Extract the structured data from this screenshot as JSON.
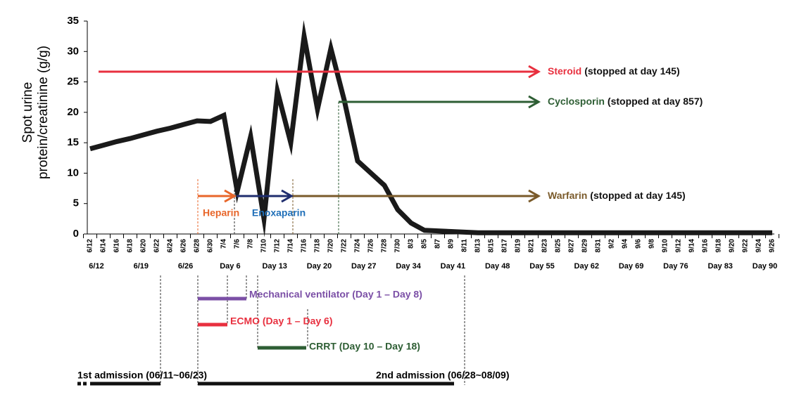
{
  "chart_data": {
    "type": "line",
    "y_label_lines": [
      "Spot urine",
      "protein/creatinine (g/g)"
    ],
    "categories": [
      "6/12",
      "6/14",
      "6/16",
      "6/18",
      "6/20",
      "6/22",
      "6/24",
      "6/26",
      "6/28",
      "6/30",
      "7/4",
      "7/6",
      "7/8",
      "7/10",
      "7/12",
      "7/14",
      "7/16",
      "7/18",
      "7/20",
      "7/22",
      "7/24",
      "7/26",
      "7/28",
      "7/30",
      "8/3",
      "8/5",
      "8/7",
      "8/9",
      "8/11",
      "8/13",
      "8/15",
      "8/17",
      "8/19",
      "8/21",
      "8/23",
      "8/25",
      "8/27",
      "8/29",
      "8/31",
      "9/2",
      "9/4",
      "9/6",
      "9/8",
      "9/10",
      "9/12",
      "9/14",
      "9/16",
      "9/18",
      "9/20",
      "9/22",
      "9/24",
      "9/26"
    ],
    "values": [
      14,
      14.6,
      15.2,
      15.7,
      16.3,
      16.9,
      17.4,
      18,
      18.6,
      18.5,
      19.5,
      7,
      16,
      2.5,
      23.5,
      15,
      32.5,
      20.5,
      30.5,
      22,
      12,
      10,
      8,
      4,
      1.8,
      0.6,
      0.5,
      0.4,
      0.3,
      0.2,
      0.2,
      0.2,
      0.2,
      0.2,
      0.2,
      0.2,
      0.2,
      0.2,
      0.2,
      0.2,
      0.2,
      0.2,
      0.2,
      0.2,
      0.2,
      0.2,
      0.2,
      0.2,
      0.2,
      0.2,
      0.2,
      0.2
    ],
    "color": "#1a1a1a",
    "ylim": [
      0,
      35
    ],
    "yticks": [
      0,
      5,
      10,
      15,
      20,
      25,
      30,
      35
    ],
    "week_labels": [
      "6/12",
      "6/19",
      "6/26",
      "Day 6",
      "Day 13",
      "Day 20",
      "Day 27",
      "Day 34",
      "Day 41",
      "Day 48",
      "Day 55",
      "Day 62",
      "Day 69",
      "Day 76",
      "Day 83",
      "Day 90"
    ],
    "medications": [
      {
        "name": "Steroid",
        "note": "(stopped at day 145)",
        "color": "#e8303f"
      },
      {
        "name": "Cyclosporin",
        "note": "(stopped at day 857)",
        "color": "#2e5e34"
      },
      {
        "name": "Warfarin",
        "note": "(stopped at day 145)",
        "color": "#7a5a2a"
      },
      {
        "name": "Heparin",
        "color": "#e8662a"
      },
      {
        "name": "Enoxaparin",
        "color": "#1f6fb8"
      }
    ],
    "support": [
      {
        "label": "Mechanical ventilator (Day 1 – Day 8)",
        "color": "#7b4fa6"
      },
      {
        "label": "ECMO (Day 1 – Day 6)",
        "color": "#e8303f"
      },
      {
        "label": "CRRT (Day 10 – Day 18)",
        "color": "#2e5e34"
      }
    ],
    "admissions": [
      "1st admission (06/11~06/23)",
      "2nd admission (06/28~08/09)"
    ]
  }
}
